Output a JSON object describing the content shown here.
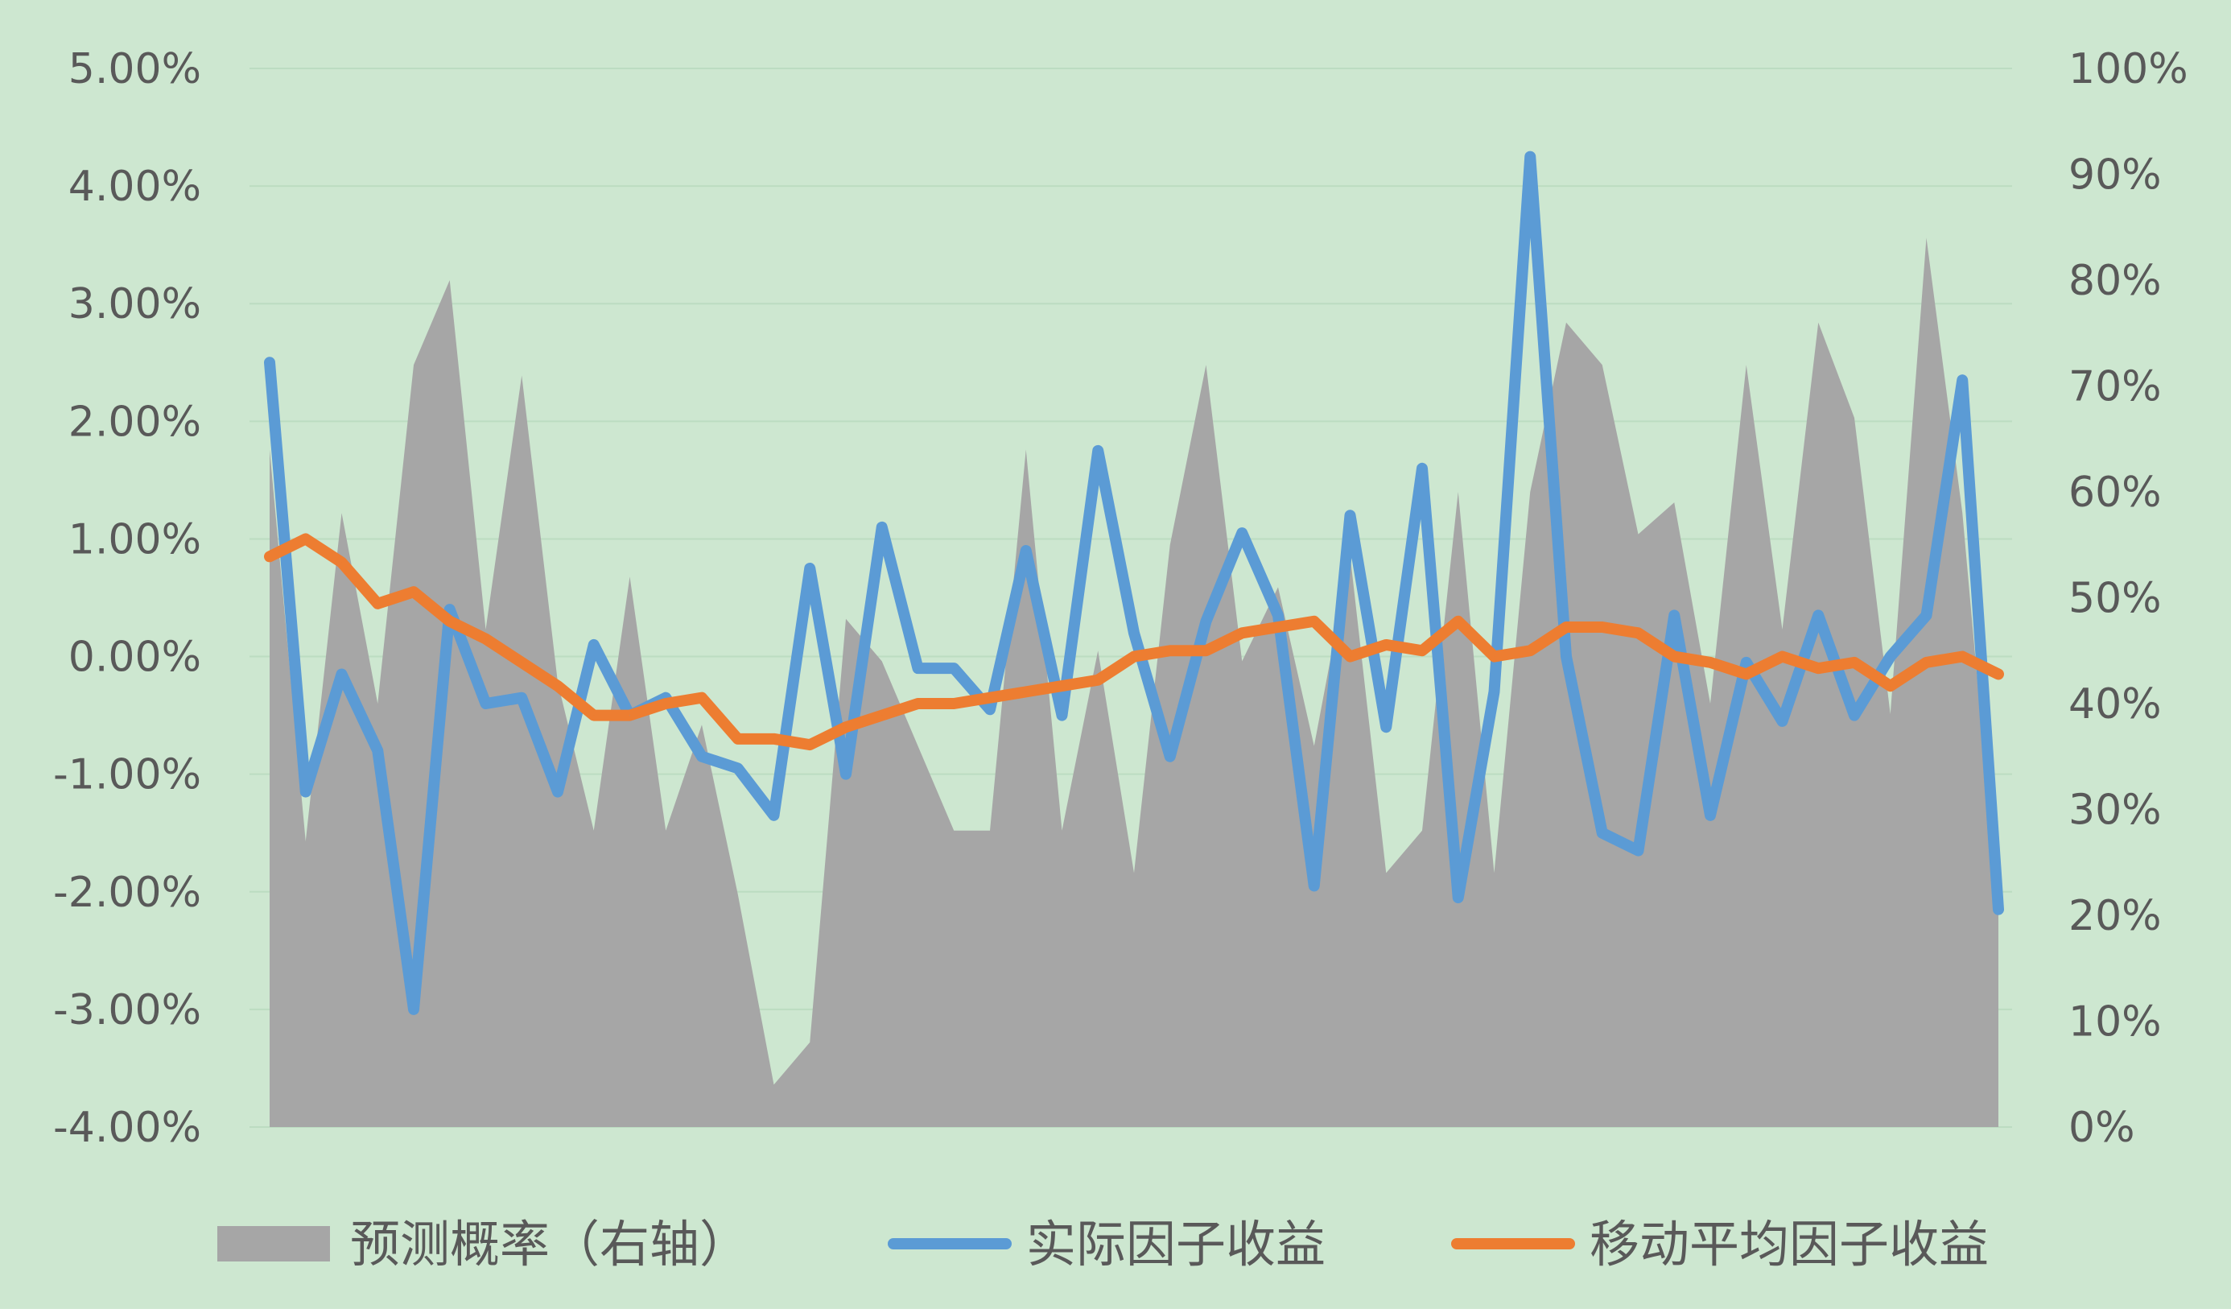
{
  "chart_data": {
    "type": "area+line (dual axis)",
    "x_count": 49,
    "left_axis": {
      "range": [
        -4,
        5
      ],
      "ticks": [
        "5.00%",
        "4.00%",
        "3.00%",
        "2.00%",
        "1.00%",
        "0.00%",
        "-1.00%",
        "-2.00%",
        "-3.00%",
        "-4.00%"
      ]
    },
    "right_axis": {
      "range": [
        0,
        100
      ],
      "ticks": [
        "100%",
        "90%",
        "80%",
        "70%",
        "60%",
        "50%",
        "40%",
        "30%",
        "20%",
        "10%",
        "0%"
      ]
    },
    "grid": true,
    "legend_position": "bottom",
    "series": [
      {
        "name": "预测概率（右轴）",
        "type": "area",
        "axis": "right",
        "color": "#a6a6a6",
        "values": [
          64,
          27,
          58,
          40,
          72,
          80,
          47,
          71,
          42,
          28,
          52,
          28,
          38,
          22,
          4,
          8,
          48,
          44,
          36,
          28,
          28,
          64,
          28,
          45,
          24,
          55,
          72,
          44,
          51,
          36,
          54,
          24,
          28,
          60,
          24,
          60,
          76,
          72,
          56,
          59,
          40,
          72,
          47,
          76,
          67,
          39,
          84,
          58,
          20
        ]
      },
      {
        "name": "实际因子收益",
        "type": "line",
        "axis": "left",
        "color": "#5b9bd5",
        "values": [
          2.5,
          -1.15,
          -0.15,
          -0.8,
          -3.0,
          0.4,
          -0.4,
          -0.35,
          -1.15,
          0.1,
          -0.5,
          -0.35,
          -0.85,
          -0.95,
          -1.35,
          0.75,
          -1.0,
          1.1,
          -0.1,
          -0.1,
          -0.45,
          0.9,
          -0.5,
          1.75,
          0.2,
          -0.85,
          0.3,
          1.05,
          0.35,
          -1.95,
          1.2,
          -0.6,
          1.6,
          -2.05,
          -0.3,
          4.25,
          0.0,
          -1.5,
          -1.65,
          0.35,
          -1.35,
          -0.05,
          -0.55,
          0.35,
          -0.5,
          0.0,
          0.35,
          2.35,
          -2.15
        ]
      },
      {
        "name": "移动平均因子收益",
        "type": "line",
        "axis": "left",
        "color": "#ed7d31",
        "values": [
          0.85,
          1.0,
          0.8,
          0.45,
          0.55,
          0.3,
          0.15,
          -0.05,
          -0.25,
          -0.5,
          -0.5,
          -0.4,
          -0.35,
          -0.7,
          -0.7,
          -0.75,
          -0.6,
          -0.5,
          -0.4,
          -0.4,
          -0.35,
          -0.3,
          -0.25,
          -0.2,
          0.0,
          0.05,
          0.05,
          0.2,
          0.25,
          0.3,
          0.0,
          0.1,
          0.05,
          0.3,
          0.0,
          0.05,
          0.25,
          0.25,
          0.2,
          0.0,
          -0.05,
          -0.15,
          0.0,
          -0.1,
          -0.05,
          -0.25,
          -0.05,
          0.0,
          -0.15
        ]
      }
    ],
    "legend": [
      "预测概率（右轴）",
      "实际因子收益",
      "移动平均因子收益"
    ]
  }
}
